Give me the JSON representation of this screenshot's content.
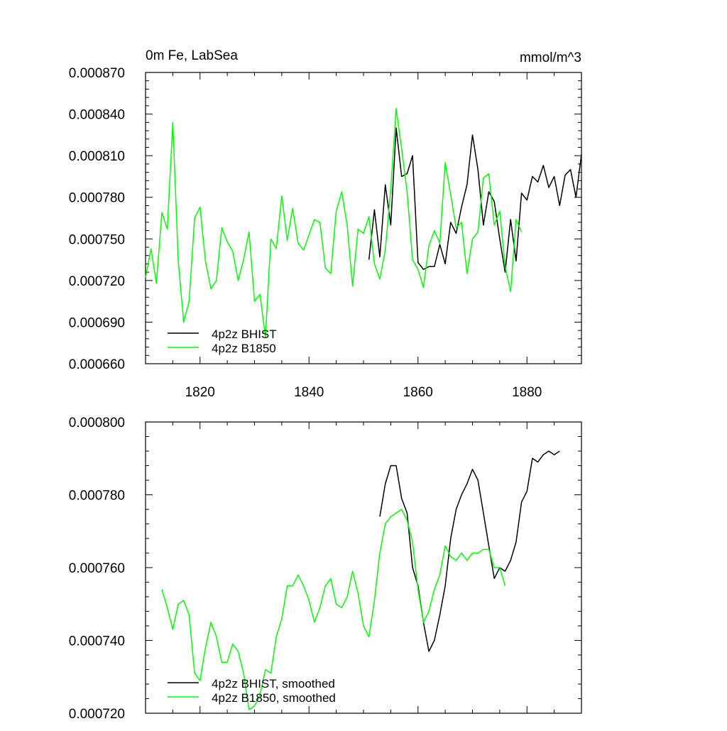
{
  "chart_data": [
    {
      "type": "line",
      "title_left": "0m Fe, LabSea",
      "title_right": "mmol/m^3",
      "xlim": [
        1810,
        1890
      ],
      "ylim": [
        0.00066,
        0.00087
      ],
      "x_ticks": [
        1820,
        1840,
        1860,
        1880
      ],
      "x_tick_labels": [
        "1820",
        "1840",
        "1860",
        "1880"
      ],
      "y_ticks": [
        0.00066,
        0.00069,
        0.00072,
        0.00075,
        0.00078,
        0.00081,
        0.00084,
        0.00087
      ],
      "y_tick_labels": [
        "0.000660",
        "0.000690",
        "0.000720",
        "0.000750",
        "0.000780",
        "0.000810",
        "0.000840",
        "0.000870"
      ],
      "legend_position": "bottom-left",
      "series": [
        {
          "name": "4p2z BHIST",
          "color": "#000000",
          "x_start": 1851,
          "values": [
            0.000735,
            0.000771,
            0.000737,
            0.000789,
            0.00076,
            0.00083,
            0.000795,
            0.000797,
            0.00081,
            0.000733,
            0.000728,
            0.00073,
            0.00073,
            0.000746,
            0.000732,
            0.000762,
            0.000754,
            0.000773,
            0.000789,
            0.000825,
            0.0008,
            0.00076,
            0.000784,
            0.000777,
            0.00075,
            0.000726,
            0.000764,
            0.000734,
            0.000783,
            0.000778,
            0.000795,
            0.000791,
            0.000803,
            0.000787,
            0.000795,
            0.000774,
            0.000796,
            0.0008,
            0.00078,
            0.000811
          ]
        },
        {
          "name": "4p2z B1850",
          "color": "#00ff00",
          "x_start": 1810,
          "values": [
            0.000722,
            0.000743,
            0.000718,
            0.000769,
            0.000757,
            0.000834,
            0.000734,
            0.00069,
            0.000705,
            0.000765,
            0.000773,
            0.000734,
            0.000714,
            0.00072,
            0.000758,
            0.000748,
            0.000741,
            0.00072,
            0.000735,
            0.000755,
            0.000705,
            0.00071,
            0.000679,
            0.00075,
            0.000743,
            0.000781,
            0.000749,
            0.000772,
            0.000747,
            0.000742,
            0.000753,
            0.000764,
            0.000762,
            0.000729,
            0.000725,
            0.00077,
            0.000784,
            0.00076,
            0.000716,
            0.000757,
            0.000754,
            0.000766,
            0.000732,
            0.000721,
            0.000742,
            0.000786,
            0.000844,
            0.000815,
            0.000784,
            0.000735,
            0.000728,
            0.000715,
            0.000745,
            0.000756,
            0.000747,
            0.000805,
            0.000782,
            0.000758,
            0.000762,
            0.000725,
            0.00075,
            0.000755,
            0.000794,
            0.000797,
            0.00076,
            0.00077,
            0.00073,
            0.000712,
            0.000764,
            0.000755
          ]
        }
      ]
    },
    {
      "type": "line",
      "xlim": [
        1810,
        1890
      ],
      "ylim": [
        0.00072,
        0.0008
      ],
      "x_ticks": [
        1820,
        1840,
        1860,
        1880
      ],
      "y_ticks": [
        0.00072,
        0.00074,
        0.00076,
        0.00078,
        0.0008
      ],
      "y_tick_labels": [
        "0.000720",
        "0.000740",
        "0.000760",
        "0.000780",
        "0.000800"
      ],
      "legend_position": "bottom-left",
      "series": [
        {
          "name": "4p2z BHIST, smoothed",
          "color": "#000000",
          "x_start": 1853,
          "values": [
            0.000774,
            0.000783,
            0.000788,
            0.000788,
            0.000779,
            0.000775,
            0.00076,
            0.000755,
            0.000745,
            0.000737,
            0.00074,
            0.000747,
            0.000755,
            0.000768,
            0.000776,
            0.00078,
            0.000783,
            0.000787,
            0.000784,
            0.000775,
            0.000766,
            0.000757,
            0.00076,
            0.000759,
            0.000762,
            0.000767,
            0.000778,
            0.000781,
            0.00079,
            0.000789,
            0.000791,
            0.000792,
            0.000791,
            0.000792
          ]
        },
        {
          "name": "4p2z B1850, smoothed",
          "color": "#00ff00",
          "x_start": 1813,
          "values": [
            0.000754,
            0.000749,
            0.000743,
            0.00075,
            0.000751,
            0.000747,
            0.000731,
            0.000729,
            0.000738,
            0.000745,
            0.000741,
            0.000734,
            0.000734,
            0.000739,
            0.000737,
            0.000731,
            0.000721,
            0.000722,
            0.000725,
            0.000732,
            0.000731,
            0.000741,
            0.000746,
            0.000755,
            0.000755,
            0.000758,
            0.000755,
            0.000751,
            0.000745,
            0.000749,
            0.000755,
            0.000757,
            0.00075,
            0.000749,
            0.000752,
            0.000759,
            0.000753,
            0.000744,
            0.000741,
            0.000751,
            0.000764,
            0.000772,
            0.000774,
            0.000775,
            0.000776,
            0.000773,
            0.000767,
            0.000754,
            0.000745,
            0.000748,
            0.000754,
            0.000758,
            0.000766,
            0.000763,
            0.000762,
            0.000764,
            0.000762,
            0.000764,
            0.000764,
            0.000765,
            0.000765,
            0.00076,
            0.00076,
            0.000755
          ]
        }
      ]
    }
  ]
}
